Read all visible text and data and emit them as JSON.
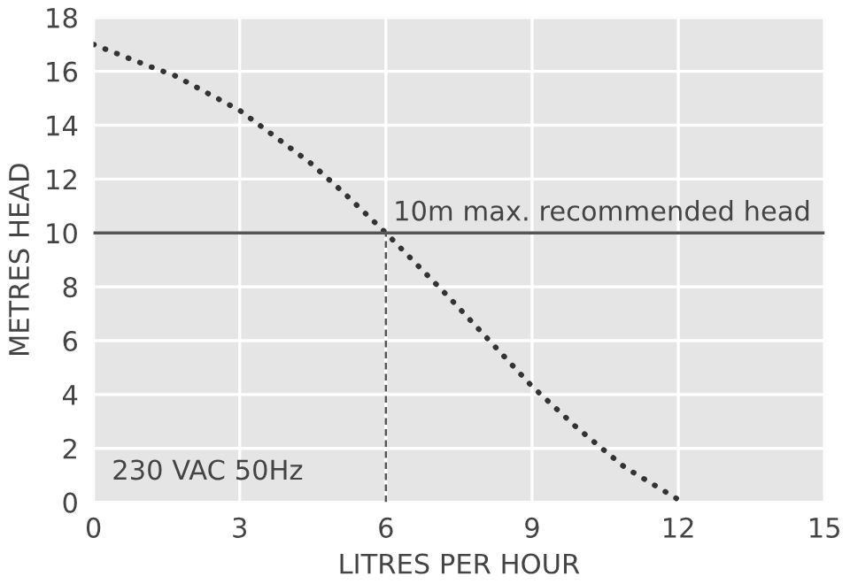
{
  "chart_data": {
    "type": "line",
    "xlabel": "LITRES PER HOUR",
    "ylabel": "METRES HEAD",
    "x": [
      0,
      1.13,
      1.66,
      3,
      4.45,
      5.13,
      6,
      7.3,
      9,
      9.9,
      10.9,
      12.0
    ],
    "series": [
      {
        "color": "#333333",
        "values": [
          17.0,
          16.2,
          15.85,
          14.55,
          12.6,
          11.5,
          10,
          7.6,
          4.3,
          2.8,
          1.3,
          0.1
        ]
      }
    ],
    "line_style": "dotted",
    "marker": "none",
    "xlim": [
      0,
      15
    ],
    "ylim": [
      0,
      18
    ],
    "xticks": [
      0,
      3,
      6,
      9,
      12,
      15
    ],
    "yticks": [
      0,
      2,
      4,
      6,
      8,
      10,
      12,
      14,
      16,
      18
    ],
    "grid": true,
    "ref_lines": [
      {
        "axis": "y",
        "value": 10,
        "label": "10m max. recommended head",
        "color": "#555555",
        "line_style": "solid"
      },
      {
        "axis": "x",
        "value": 6,
        "label": null,
        "color": "#555555",
        "line_style": "dashed"
      }
    ],
    "annotations": [
      "230 VAC 50Hz"
    ]
  }
}
